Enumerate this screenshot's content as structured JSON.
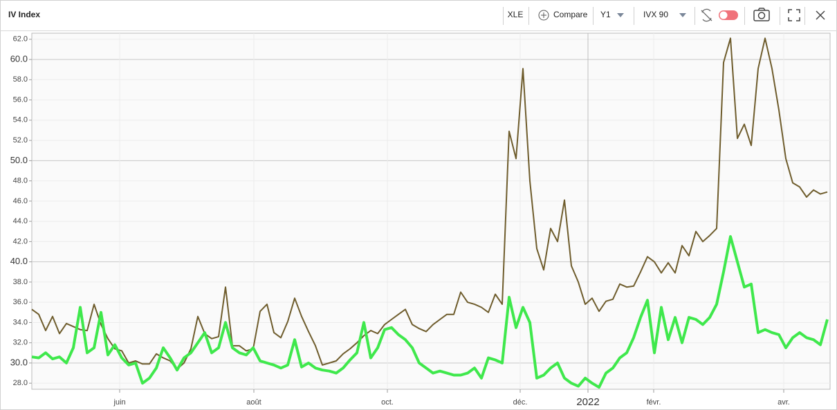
{
  "header": {
    "title": "IV Index"
  },
  "toolbar": {
    "symbol": "XLE",
    "compare": "Compare",
    "period": "Y1",
    "measure": "IVX 90"
  },
  "chart_data": {
    "type": "line",
    "xlim": [
      0,
      115.4
    ],
    "xticks": [
      {
        "value": 12.7,
        "label": "juin"
      },
      {
        "value": 32.1,
        "label": "août"
      },
      {
        "value": 51.4,
        "label": "oct."
      },
      {
        "value": 70.6,
        "label": "déc."
      },
      {
        "value": 80.4,
        "label": "2022"
      },
      {
        "value": 89.9,
        "label": "févr."
      },
      {
        "value": 108.7,
        "label": "avr."
      }
    ],
    "ylim": [
      27.4,
      62.6
    ],
    "yticks": [
      {
        "value": 28,
        "label": "28.0"
      },
      {
        "value": 30,
        "label": "30.0"
      },
      {
        "value": 32,
        "label": "32.0"
      },
      {
        "value": 34,
        "label": "34.0"
      },
      {
        "value": 36,
        "label": "36.0"
      },
      {
        "value": 38,
        "label": "38.0"
      },
      {
        "value": 40,
        "label": "40.0"
      },
      {
        "value": 42,
        "label": "42.0"
      },
      {
        "value": 44,
        "label": "44.0"
      },
      {
        "value": 46,
        "label": "46.0"
      },
      {
        "value": 48,
        "label": "48.0"
      },
      {
        "value": 50,
        "label": "50.0"
      },
      {
        "value": 52,
        "label": "52.0"
      },
      {
        "value": 54,
        "label": "54.0"
      },
      {
        "value": 56,
        "label": "56.0"
      },
      {
        "value": 58,
        "label": "58.0"
      },
      {
        "value": 60,
        "label": "60.0"
      },
      {
        "value": 62,
        "label": "62.0"
      }
    ],
    "grid": true,
    "series": [
      {
        "color": "#6e5c2c",
        "width": 2,
        "values": [
          35.3,
          34.8,
          33.2,
          34.6,
          32.9,
          33.9,
          33.6,
          33.3,
          33.2,
          35.8,
          33.8,
          32.4,
          31.4,
          31.2,
          30.0,
          30.2,
          29.9,
          29.9,
          30.9,
          30.5,
          30.2,
          29.4,
          30.0,
          31.4,
          34.6,
          32.9,
          32.4,
          32.6,
          37.5,
          31.7,
          31.7,
          31.2,
          31.4,
          35.1,
          35.8,
          33.0,
          32.5,
          34.1,
          36.4,
          34.6,
          33.1,
          31.7,
          29.8,
          30.0,
          30.2,
          30.9,
          31.4,
          32.0,
          32.7,
          33.2,
          32.9,
          33.8,
          34.3,
          34.8,
          35.3,
          33.8,
          33.4,
          33.1,
          33.8,
          34.3,
          34.8,
          34.8,
          37.0,
          36.0,
          35.8,
          35.5,
          35.0,
          36.8,
          35.8,
          52.9,
          50.2,
          59.1,
          48.0,
          41.3,
          39.2,
          43.3,
          42.0,
          46.1,
          39.6,
          38.0,
          35.8,
          36.4,
          35.1,
          36.1,
          36.3,
          37.8,
          37.5,
          37.6,
          39.0,
          40.5,
          40.0,
          38.9,
          39.9,
          38.9,
          41.6,
          40.6,
          43.0,
          42.0,
          42.6,
          43.3,
          59.7,
          62.1,
          52.2,
          53.6,
          51.5,
          59.1,
          62.1,
          59.1,
          55.0,
          50.2,
          47.8,
          47.4,
          46.4,
          47.1,
          46.7,
          46.9
        ]
      },
      {
        "color": "#3fe84c",
        "width": 4,
        "values": [
          30.6,
          30.5,
          31.0,
          30.4,
          30.6,
          30.0,
          31.5,
          35.5,
          31.0,
          31.5,
          35.0,
          30.8,
          31.8,
          30.5,
          29.8,
          30.0,
          28.0,
          28.5,
          29.5,
          31.5,
          30.5,
          29.3,
          30.5,
          31.0,
          32.0,
          33.0,
          31.0,
          31.5,
          34.0,
          31.5,
          31.0,
          30.8,
          31.5,
          30.2,
          30.0,
          29.8,
          29.5,
          29.8,
          32.3,
          29.6,
          30.0,
          29.5,
          29.3,
          29.2,
          29.0,
          29.5,
          30.3,
          31.0,
          34.0,
          30.5,
          31.5,
          33.3,
          33.5,
          32.8,
          32.3,
          31.5,
          30.0,
          29.5,
          29.0,
          29.2,
          29.0,
          28.8,
          28.8,
          29.0,
          29.5,
          28.5,
          30.5,
          30.3,
          30.0,
          36.5,
          33.5,
          35.5,
          34.0,
          28.5,
          28.8,
          29.5,
          30.0,
          28.5,
          28.0,
          27.7,
          28.5,
          28.0,
          27.6,
          29.0,
          29.5,
          30.5,
          31.0,
          32.5,
          34.5,
          36.2,
          31.0,
          35.5,
          32.3,
          34.5,
          32.0,
          34.5,
          34.3,
          33.8,
          34.5,
          35.8,
          39.0,
          42.5,
          40.0,
          37.5,
          37.8,
          33.0,
          33.3,
          33.0,
          32.8,
          31.5,
          32.5,
          33.0,
          32.5,
          32.3,
          31.8,
          34.3
        ]
      }
    ]
  }
}
